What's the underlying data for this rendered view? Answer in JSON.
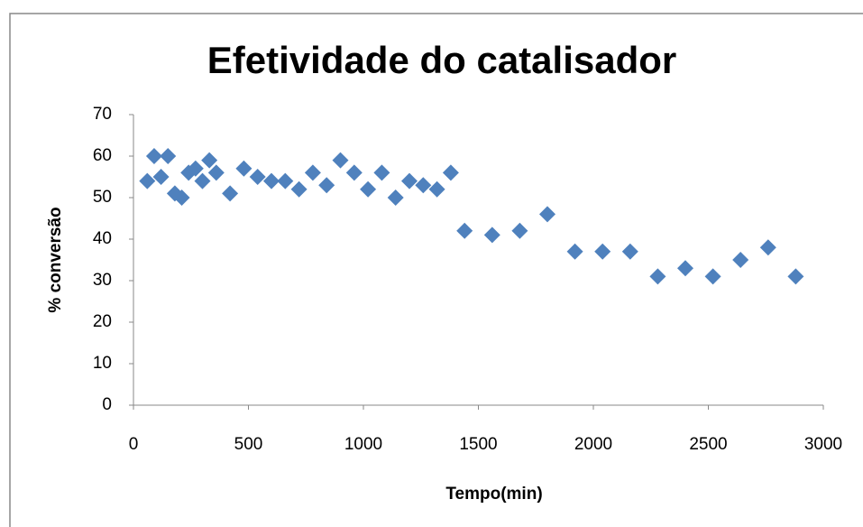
{
  "chart_data": {
    "type": "scatter",
    "title": "Efetividade do catalisador",
    "x_label": "Tempo(min)",
    "y_label": "% conversão",
    "series": [
      {
        "color": "#4f81bd",
        "x": [
          60,
          90,
          120,
          150,
          180,
          210,
          240,
          270,
          300,
          330,
          360,
          420,
          480,
          540,
          600,
          660,
          720,
          780,
          840,
          900,
          960,
          1020,
          1080,
          1140,
          1200,
          1260,
          1320,
          1380,
          1440,
          1560,
          1680,
          1800,
          1920,
          2040,
          2160,
          2280,
          2400,
          2520,
          2640,
          2760,
          2880
        ],
        "values": [
          54,
          60,
          55,
          60,
          51,
          50,
          56,
          57,
          54,
          59,
          56,
          51,
          57,
          55,
          54,
          54,
          52,
          56,
          53,
          59,
          56,
          52,
          56,
          50,
          54,
          53,
          52,
          56,
          42,
          41,
          42,
          46,
          37,
          37,
          37,
          31,
          33,
          31,
          35,
          38,
          31
        ]
      }
    ],
    "xlim": [
      0,
      3000
    ],
    "xticks": [
      0,
      500,
      1000,
      1500,
      2000,
      2500,
      3000
    ],
    "ylim": [
      0,
      70
    ],
    "yticks": [
      0,
      10,
      20,
      30,
      40,
      50,
      60,
      70
    ]
  }
}
